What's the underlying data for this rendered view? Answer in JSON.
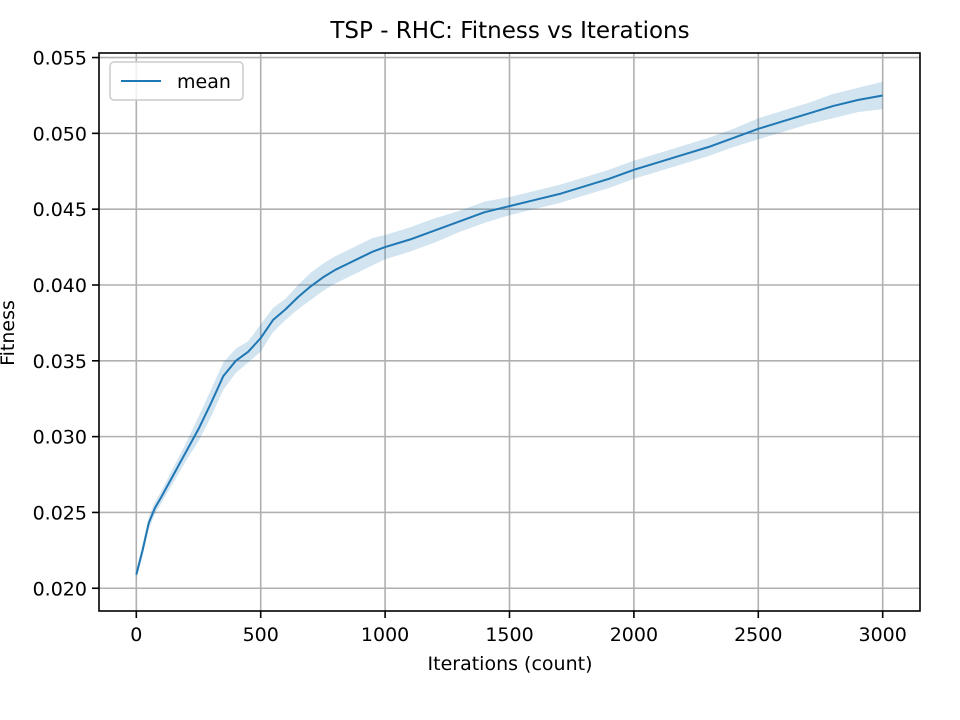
{
  "chart_data": {
    "type": "line",
    "title": "TSP - RHC: Fitness vs Iterations",
    "xlabel": "Iterations (count)",
    "ylabel": "Fitness",
    "xlim": [
      -150,
      3150
    ],
    "ylim": [
      0.0185,
      0.0553
    ],
    "xticks": [
      0,
      500,
      1000,
      1500,
      2000,
      2500,
      3000
    ],
    "yticks": [
      0.02,
      0.025,
      0.03,
      0.035,
      0.04,
      0.045,
      0.05,
      0.055
    ],
    "ytick_labels": [
      "0.020",
      "0.025",
      "0.030",
      "0.035",
      "0.040",
      "0.045",
      "0.050",
      "0.055"
    ],
    "grid": true,
    "legend_position": "top-left",
    "series": [
      {
        "name": "mean",
        "color": "#1f77b4",
        "band_color": "#1f77b4",
        "x": [
          0,
          25,
          50,
          75,
          100,
          150,
          200,
          250,
          300,
          350,
          400,
          450,
          500,
          550,
          600,
          650,
          700,
          750,
          800,
          850,
          900,
          950,
          1000,
          1100,
          1200,
          1300,
          1400,
          1500,
          1600,
          1700,
          1800,
          1900,
          2000,
          2100,
          2200,
          2300,
          2400,
          2500,
          2600,
          2700,
          2800,
          2900,
          3000
        ],
        "y": [
          0.0209,
          0.0225,
          0.0243,
          0.0253,
          0.026,
          0.0275,
          0.029,
          0.0305,
          0.0322,
          0.034,
          0.035,
          0.0356,
          0.0365,
          0.0377,
          0.0384,
          0.0392,
          0.0399,
          0.0405,
          0.041,
          0.0414,
          0.0418,
          0.0422,
          0.0425,
          0.043,
          0.0436,
          0.0442,
          0.0448,
          0.0452,
          0.0456,
          0.046,
          0.0465,
          0.047,
          0.0476,
          0.0481,
          0.0486,
          0.0491,
          0.0497,
          0.0503,
          0.0508,
          0.0513,
          0.0518,
          0.0522,
          0.0525
        ],
        "lower": [
          0.0206,
          0.0221,
          0.0239,
          0.0249,
          0.0256,
          0.027,
          0.0284,
          0.0297,
          0.0313,
          0.0331,
          0.0342,
          0.0349,
          0.0356,
          0.0369,
          0.0377,
          0.0384,
          0.039,
          0.0396,
          0.0401,
          0.0405,
          0.0409,
          0.0413,
          0.0417,
          0.0422,
          0.0428,
          0.0435,
          0.0441,
          0.0446,
          0.045,
          0.0454,
          0.0459,
          0.0464,
          0.047,
          0.0475,
          0.048,
          0.0485,
          0.0491,
          0.0496,
          0.0501,
          0.0506,
          0.051,
          0.0514,
          0.0516
        ],
        "upper": [
          0.0212,
          0.0229,
          0.0247,
          0.0257,
          0.0264,
          0.028,
          0.0296,
          0.0313,
          0.0331,
          0.0349,
          0.0358,
          0.0363,
          0.0374,
          0.0385,
          0.0391,
          0.04,
          0.0408,
          0.0414,
          0.0419,
          0.0423,
          0.0427,
          0.0431,
          0.0433,
          0.0438,
          0.0444,
          0.0449,
          0.0455,
          0.0458,
          0.0462,
          0.0466,
          0.0471,
          0.0476,
          0.0482,
          0.0487,
          0.0492,
          0.0497,
          0.0503,
          0.051,
          0.0515,
          0.052,
          0.0526,
          0.053,
          0.0534
        ]
      }
    ]
  }
}
